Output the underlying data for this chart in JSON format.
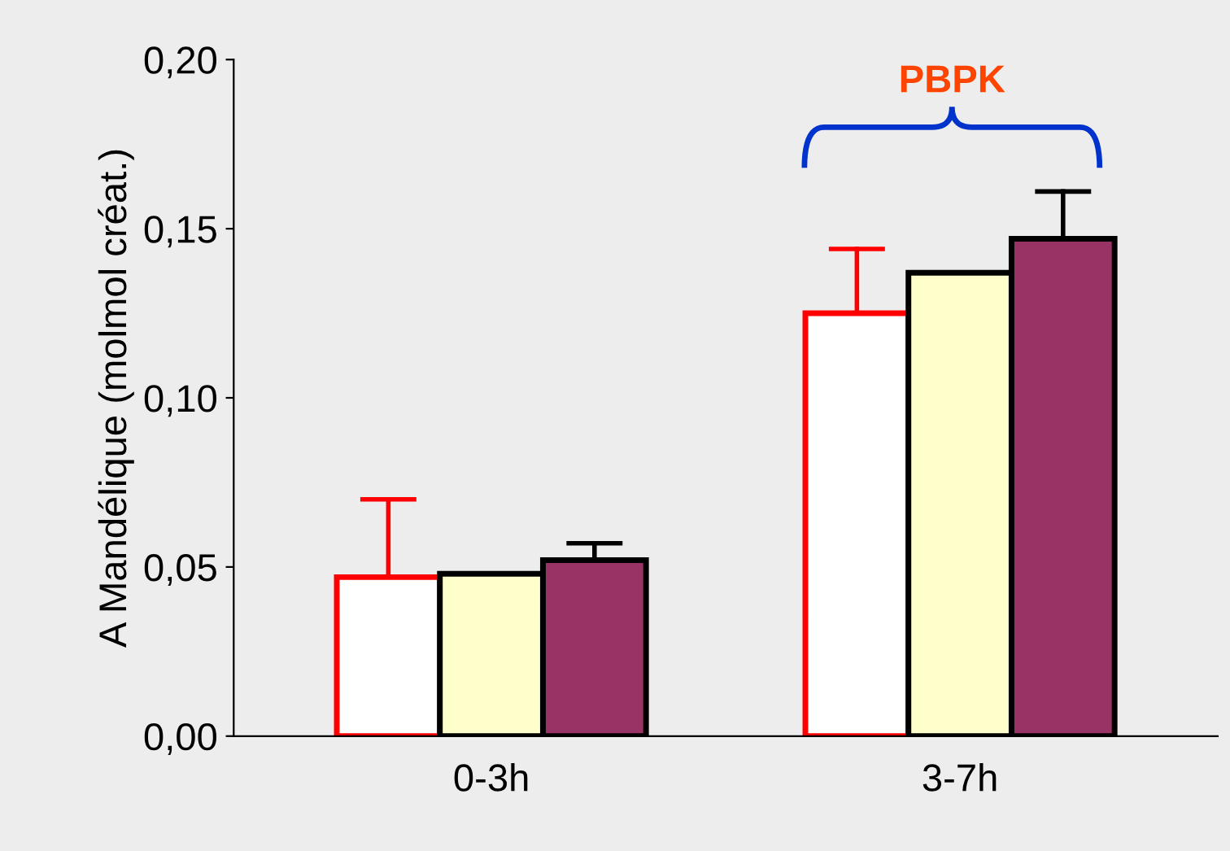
{
  "chart_data": {
    "type": "bar",
    "ylabel": "A Mandélique (molmol créat.)",
    "categories": [
      "0-3h",
      "3-7h"
    ],
    "series": [
      {
        "color": "#ff0000",
        "values": [
          0.047,
          0.125
        ],
        "errors": [
          [
            0.047,
            0.07
          ],
          [
            0.125,
            0.144
          ]
        ]
      },
      {
        "color": "#ffffcc",
        "values": [
          0.048,
          0.137
        ]
      },
      {
        "color": "#993366",
        "values": [
          0.052,
          0.147
        ],
        "errors": [
          [
            0.052,
            0.057
          ],
          [
            0.147,
            0.161
          ]
        ]
      }
    ],
    "ylim": [
      0,
      0.2
    ],
    "yticks": [
      {
        "value": 0,
        "label": "0,00"
      },
      {
        "value": 0.05,
        "label": "0,05"
      },
      {
        "value": 0.1,
        "label": "0,10"
      },
      {
        "value": 0.15,
        "label": "0,15"
      },
      {
        "value": 0.2,
        "label": "0,20"
      }
    ],
    "annotations": [
      "PBPK"
    ],
    "grid": false,
    "legend": false
  }
}
